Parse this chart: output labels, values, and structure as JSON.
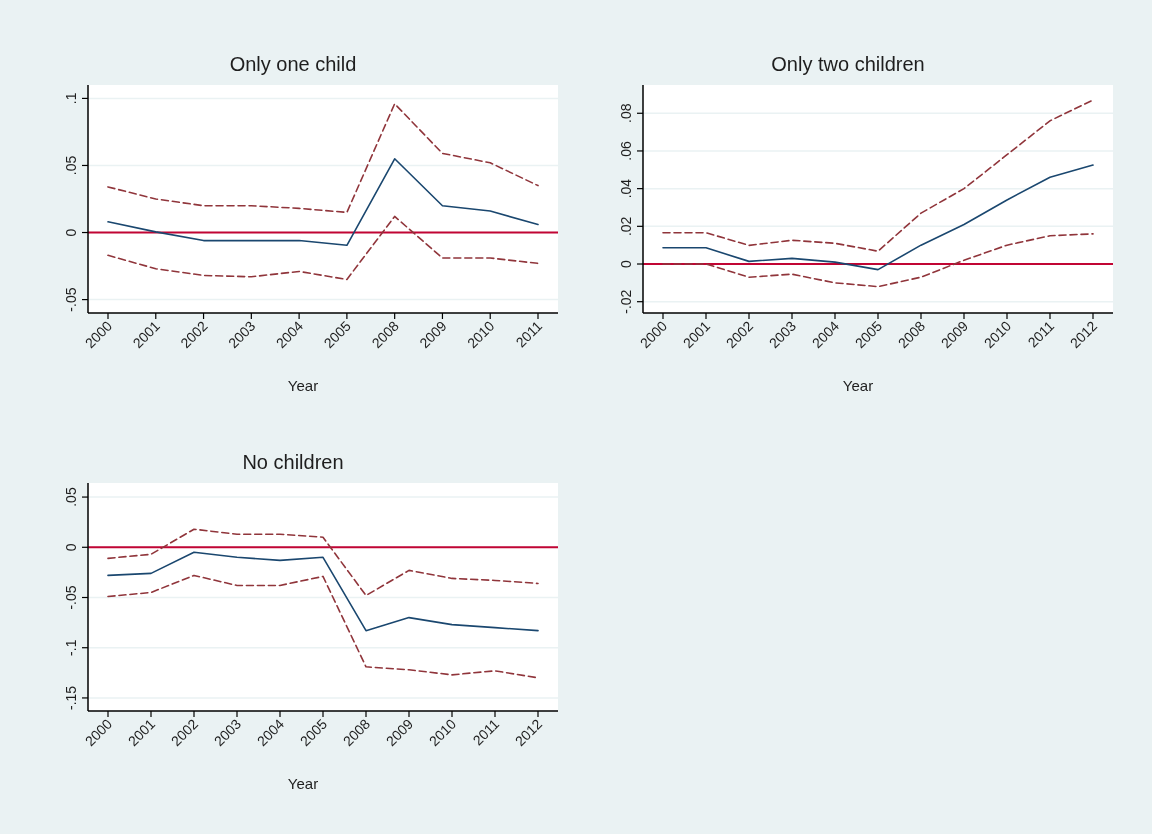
{
  "chart_data": [
    {
      "type": "line",
      "title": "Only one child",
      "xlabel": "Year",
      "categories": [
        "2000",
        "2001",
        "2002",
        "2003",
        "2004",
        "2005",
        "2008",
        "2009",
        "2010",
        "2011"
      ],
      "ylim": [
        -0.06,
        0.11
      ],
      "yticks": [
        {
          "value": -0.05,
          "label": "-.05"
        },
        {
          "value": 0,
          "label": "0"
        },
        {
          "value": 0.05,
          "label": ".05"
        },
        {
          "value": 0.1,
          "label": ".1"
        }
      ],
      "grid": "y",
      "ref_lines": [
        {
          "axis": "y",
          "value": 0,
          "color": "#c10534"
        }
      ],
      "series": [
        {
          "color": "#1a476f",
          "line_style": "solid",
          "values": [
            0.008,
            0.0005,
            -0.006,
            -0.006,
            -0.006,
            -0.0095,
            0.055,
            0.02,
            0.016,
            0.006
          ]
        },
        {
          "color": "#90353b",
          "line_style": "dashed",
          "values": [
            0.034,
            0.025,
            0.02,
            0.02,
            0.018,
            0.015,
            0.096,
            0.059,
            0.052,
            0.035
          ]
        },
        {
          "color": "#90353b",
          "line_style": "dashed",
          "values": [
            -0.017,
            -0.027,
            -0.032,
            -0.033,
            -0.029,
            -0.035,
            0.012,
            -0.019,
            -0.019,
            -0.023
          ]
        }
      ]
    },
    {
      "type": "line",
      "title": "Only two children",
      "xlabel": "Year",
      "categories": [
        "2000",
        "2001",
        "2002",
        "2003",
        "2004",
        "2005",
        "2008",
        "2009",
        "2010",
        "2011",
        "2012"
      ],
      "ylim": [
        -0.026,
        0.095
      ],
      "yticks": [
        {
          "value": -0.02,
          "label": "-.02"
        },
        {
          "value": 0,
          "label": "0"
        },
        {
          "value": 0.02,
          "label": ".02"
        },
        {
          "value": 0.04,
          "label": ".04"
        },
        {
          "value": 0.06,
          "label": ".06"
        },
        {
          "value": 0.08,
          "label": ".08"
        }
      ],
      "grid": "y",
      "ref_lines": [
        {
          "axis": "y",
          "value": 0,
          "color": "#c10534"
        }
      ],
      "series": [
        {
          "color": "#1a476f",
          "line_style": "solid",
          "values": [
            0.0086,
            0.0086,
            0.0014,
            0.003,
            0.001,
            -0.003,
            0.01,
            0.021,
            0.034,
            0.046,
            0.0525
          ]
        },
        {
          "color": "#90353b",
          "line_style": "dashed",
          "values": [
            0.0166,
            0.0166,
            0.0099,
            0.0126,
            0.011,
            0.0068,
            0.027,
            0.04,
            0.058,
            0.076,
            0.087
          ]
        },
        {
          "color": "#90353b",
          "line_style": "dashed",
          "values": [
            0,
            0,
            -0.007,
            -0.0054,
            -0.01,
            -0.012,
            -0.007,
            0.002,
            0.01,
            0.015,
            0.016
          ]
        }
      ]
    },
    {
      "type": "line",
      "title": "No children",
      "xlabel": "Year",
      "categories": [
        "2000",
        "2001",
        "2002",
        "2003",
        "2004",
        "2005",
        "2008",
        "2009",
        "2010",
        "2011",
        "2012"
      ],
      "ylim": [
        -0.163,
        0.064
      ],
      "yticks": [
        {
          "value": -0.15,
          "label": "-.15"
        },
        {
          "value": -0.1,
          "label": "-.1"
        },
        {
          "value": -0.05,
          "label": "-.05"
        },
        {
          "value": 0,
          "label": "0"
        },
        {
          "value": 0.05,
          "label": ".05"
        }
      ],
      "grid": "y",
      "ref_lines": [
        {
          "axis": "y",
          "value": 0,
          "color": "#c10534"
        }
      ],
      "series": [
        {
          "color": "#1a476f",
          "line_style": "solid",
          "values": [
            -0.028,
            -0.026,
            -0.005,
            -0.01,
            -0.013,
            -0.01,
            -0.083,
            -0.07,
            -0.077,
            -0.08,
            -0.083
          ]
        },
        {
          "color": "#90353b",
          "line_style": "dashed",
          "values": [
            -0.011,
            -0.007,
            0.018,
            0.013,
            0.013,
            0.01,
            -0.048,
            -0.023,
            -0.031,
            -0.033,
            -0.036
          ]
        },
        {
          "color": "#90353b",
          "line_style": "dashed",
          "values": [
            -0.049,
            -0.045,
            -0.028,
            -0.038,
            -0.038,
            -0.029,
            -0.119,
            -0.122,
            -0.127,
            -0.123,
            -0.13
          ]
        }
      ]
    }
  ]
}
